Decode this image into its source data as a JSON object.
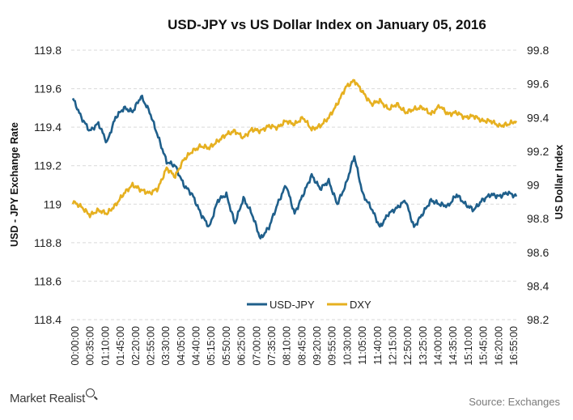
{
  "chart_data": {
    "type": "line",
    "title": "USD-JPY vs US Dollar Index on January 05, 2016",
    "ylabel": "USD - JPY Exchange Rate",
    "y2label": "US Dollar Index",
    "ylim": [
      118.4,
      119.8
    ],
    "y2lim": [
      98.2,
      99.8
    ],
    "yticks": [
      118.4,
      118.6,
      118.8,
      119,
      119.2,
      119.4,
      119.6,
      119.8
    ],
    "yticklabels": [
      "118.4",
      "118.6",
      "118.8",
      "119",
      "119.2",
      "119.4",
      "119.6",
      "119.8"
    ],
    "y2ticks": [
      98.2,
      98.4,
      98.6,
      98.8,
      99,
      99.2,
      99.4,
      99.6,
      99.8
    ],
    "y2ticklabels": [
      "98.2",
      "98.4",
      "98.6",
      "98.8",
      "99",
      "99.2",
      "99.4",
      "99.6",
      "99.8"
    ],
    "xticklabels": [
      "00:00:00",
      "00:35:00",
      "01:10:00",
      "01:45:00",
      "02:20:00",
      "02:55:00",
      "03:30:00",
      "04:05:00",
      "04:40:00",
      "05:15:00",
      "05:50:00",
      "06:25:00",
      "07:00:00",
      "07:35:00",
      "08:10:00",
      "08:45:00",
      "09:20:00",
      "09:55:00",
      "10:30:00",
      "11:05:00",
      "11:40:00",
      "12:15:00",
      "12:50:00",
      "13:25:00",
      "14:00:00",
      "14:35:00",
      "15:10:00",
      "15:45:00",
      "16:20:00",
      "16:55:00"
    ],
    "grid": true,
    "legend": "bottom-center",
    "x": [
      "00:00",
      "00:20",
      "00:40",
      "01:00",
      "01:20",
      "01:40",
      "02:00",
      "02:20",
      "02:40",
      "03:00",
      "03:20",
      "03:40",
      "04:00",
      "04:20",
      "04:40",
      "05:00",
      "05:20",
      "05:40",
      "06:00",
      "06:20",
      "06:40",
      "07:00",
      "07:20",
      "07:40",
      "08:00",
      "08:20",
      "08:40",
      "09:00",
      "09:20",
      "09:40",
      "10:00",
      "10:20",
      "10:40",
      "11:00",
      "11:20",
      "11:40",
      "12:00",
      "12:20",
      "12:40",
      "13:00",
      "13:20",
      "13:40",
      "14:00",
      "14:20",
      "14:40",
      "15:00",
      "15:20",
      "15:40",
      "16:00",
      "16:20",
      "16:40",
      "17:00",
      "17:10"
    ],
    "series": [
      {
        "name": "USD-JPY",
        "axis": "left",
        "color": "#1f5f8b",
        "values": [
          119.55,
          119.45,
          119.38,
          119.42,
          119.32,
          119.45,
          119.5,
          119.48,
          119.56,
          119.48,
          119.35,
          119.22,
          119.2,
          119.1,
          119.05,
          118.95,
          118.88,
          119.02,
          119.05,
          118.9,
          119.03,
          118.95,
          118.82,
          118.88,
          119.0,
          119.1,
          118.95,
          119.05,
          119.15,
          119.08,
          119.12,
          119.0,
          119.1,
          119.25,
          119.05,
          118.98,
          118.88,
          118.95,
          118.98,
          119.02,
          118.88,
          118.95,
          119.02,
          119.0,
          118.99,
          119.05,
          119.0,
          118.97,
          119.02,
          119.05,
          119.04,
          119.06,
          119.04
        ]
      },
      {
        "name": "DXY",
        "axis": "right",
        "color": "#e6b020",
        "values": [
          98.9,
          98.87,
          98.82,
          98.85,
          98.83,
          98.88,
          98.95,
          99.0,
          98.97,
          98.95,
          98.98,
          99.1,
          99.05,
          99.15,
          99.2,
          99.23,
          99.22,
          99.26,
          99.3,
          99.32,
          99.28,
          99.33,
          99.32,
          99.35,
          99.34,
          99.38,
          99.36,
          99.4,
          99.33,
          99.35,
          99.4,
          99.48,
          99.58,
          99.62,
          99.55,
          99.48,
          99.5,
          99.45,
          99.48,
          99.43,
          99.45,
          99.46,
          99.42,
          99.47,
          99.42,
          99.43,
          99.4,
          99.41,
          99.38,
          99.38,
          99.35,
          99.36,
          99.38
        ]
      }
    ],
    "branding": "Market Realist",
    "source": "Source: Exchanges"
  }
}
